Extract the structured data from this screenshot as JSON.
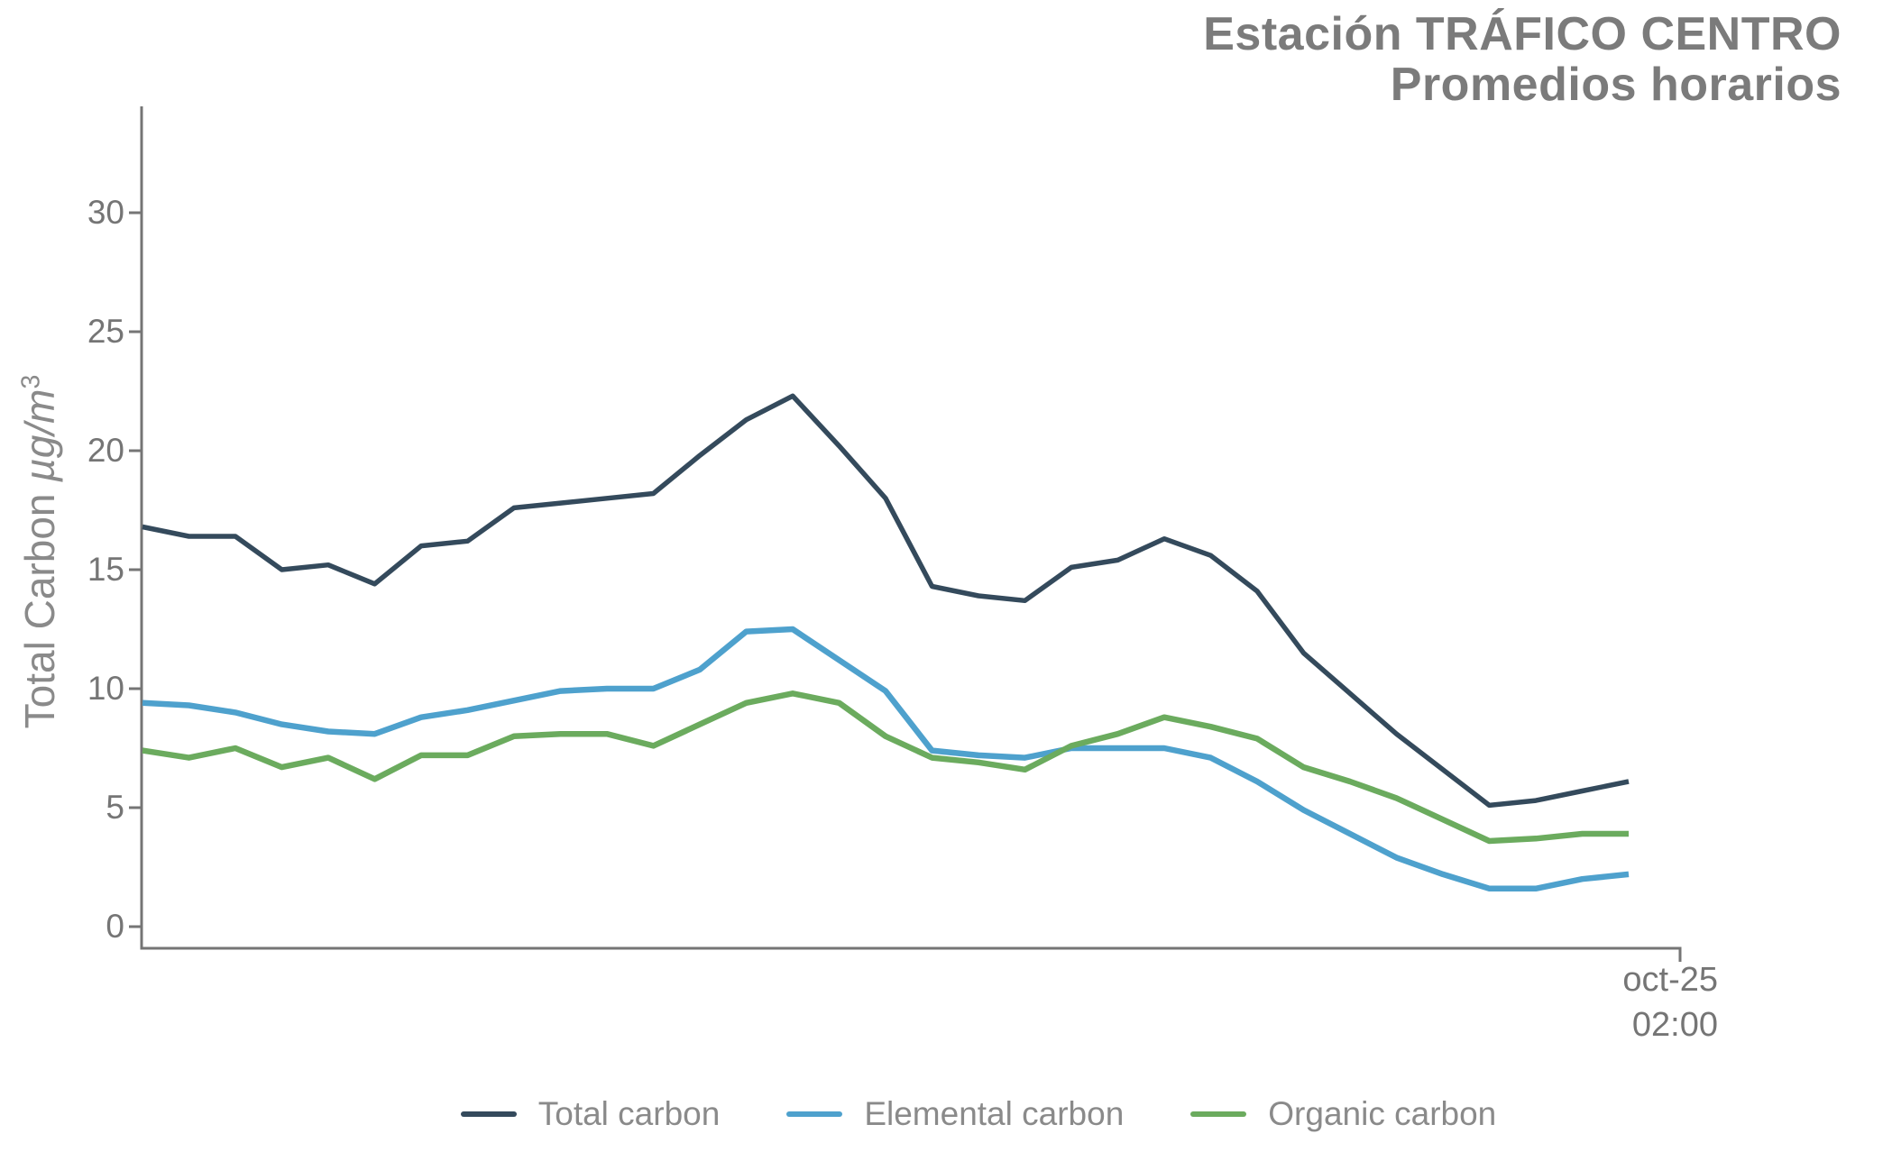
{
  "chart_data": {
    "type": "line",
    "title": "Estación TRÁFICO CENTRO",
    "subtitle": "Promedios horarios",
    "ylabel": "Total Carbon µg/m³",
    "ylabel_parts": {
      "regular": "Total Carbon ",
      "italic": "µg/m",
      "sup": "3"
    },
    "yticks": [
      "0",
      "5",
      "10",
      "15",
      "20",
      "25",
      "30"
    ],
    "ylim": [
      0,
      34.5
    ],
    "grid": false,
    "legend_position": "bottom",
    "x_end_tick": {
      "line1": "oct-25",
      "line2": "02:00"
    },
    "series": [
      {
        "name": "Total carbon",
        "color": "#344A5C",
        "values": [
          16.8,
          16.4,
          16.4,
          15.0,
          15.2,
          14.4,
          16.0,
          16.2,
          17.6,
          17.8,
          18.0,
          18.2,
          19.8,
          21.3,
          22.3,
          20.2,
          18.0,
          14.3,
          13.9,
          13.7,
          15.1,
          15.4,
          16.3,
          15.6,
          14.1,
          11.5,
          9.8,
          8.1,
          6.6,
          5.1,
          5.3,
          5.7,
          6.1
        ]
      },
      {
        "name": "Elemental carbon",
        "color": "#4EA1CD",
        "values": [
          9.4,
          9.3,
          9.0,
          8.5,
          8.2,
          8.1,
          8.8,
          9.1,
          9.5,
          9.9,
          10.0,
          10.0,
          10.8,
          12.4,
          12.5,
          11.2,
          9.9,
          7.4,
          7.2,
          7.1,
          7.5,
          7.5,
          7.5,
          7.1,
          6.1,
          4.9,
          3.9,
          2.9,
          2.2,
          1.6,
          1.6,
          2.0,
          2.2
        ]
      },
      {
        "name": "Organic carbon",
        "color": "#6BAB5E",
        "values": [
          7.4,
          7.1,
          7.5,
          6.7,
          7.1,
          6.2,
          7.2,
          7.2,
          8.0,
          8.1,
          8.1,
          7.6,
          8.5,
          9.4,
          9.8,
          9.4,
          8.0,
          7.1,
          6.9,
          6.6,
          7.6,
          8.1,
          8.8,
          8.4,
          7.9,
          6.7,
          6.1,
          5.4,
          4.5,
          3.6,
          3.7,
          3.9,
          3.9
        ]
      }
    ]
  },
  "colors": {
    "title_text": "#7b7b7b",
    "axis_text": "#757575",
    "legend_text": "#8a8a8a",
    "axis_line": "#757575",
    "background": "#ffffff"
  }
}
